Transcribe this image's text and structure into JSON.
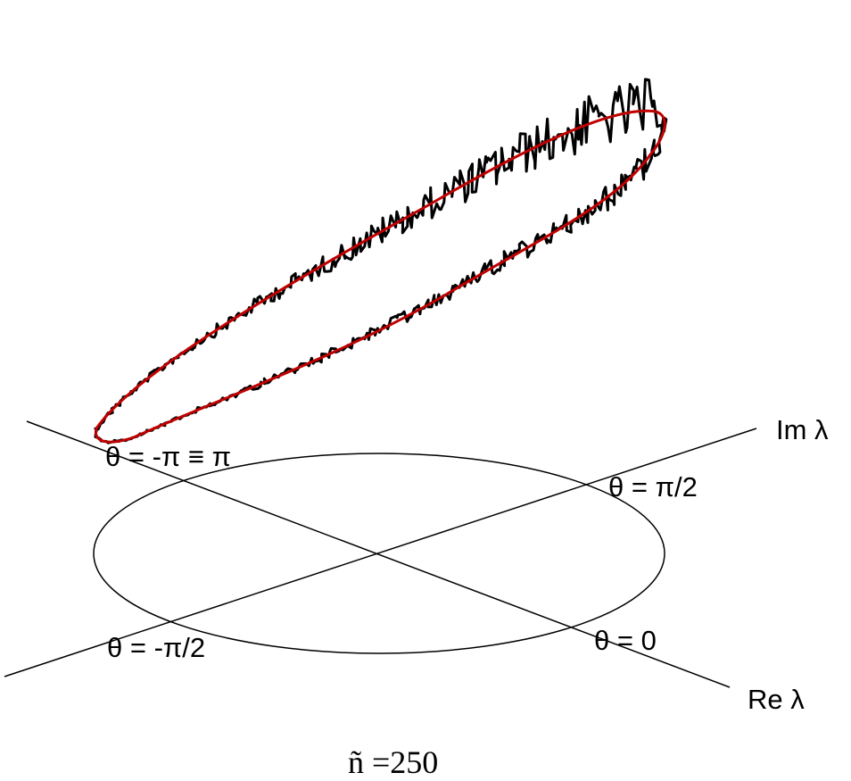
{
  "axes": {
    "im": "Im λ",
    "re": "Re λ"
  },
  "angles": {
    "pi": "θ = -π ≡ π",
    "half_pi": "θ = π/2",
    "minus_half_pi": "θ = -π/2",
    "zero": "θ = 0"
  },
  "caption": "ñ =250"
}
